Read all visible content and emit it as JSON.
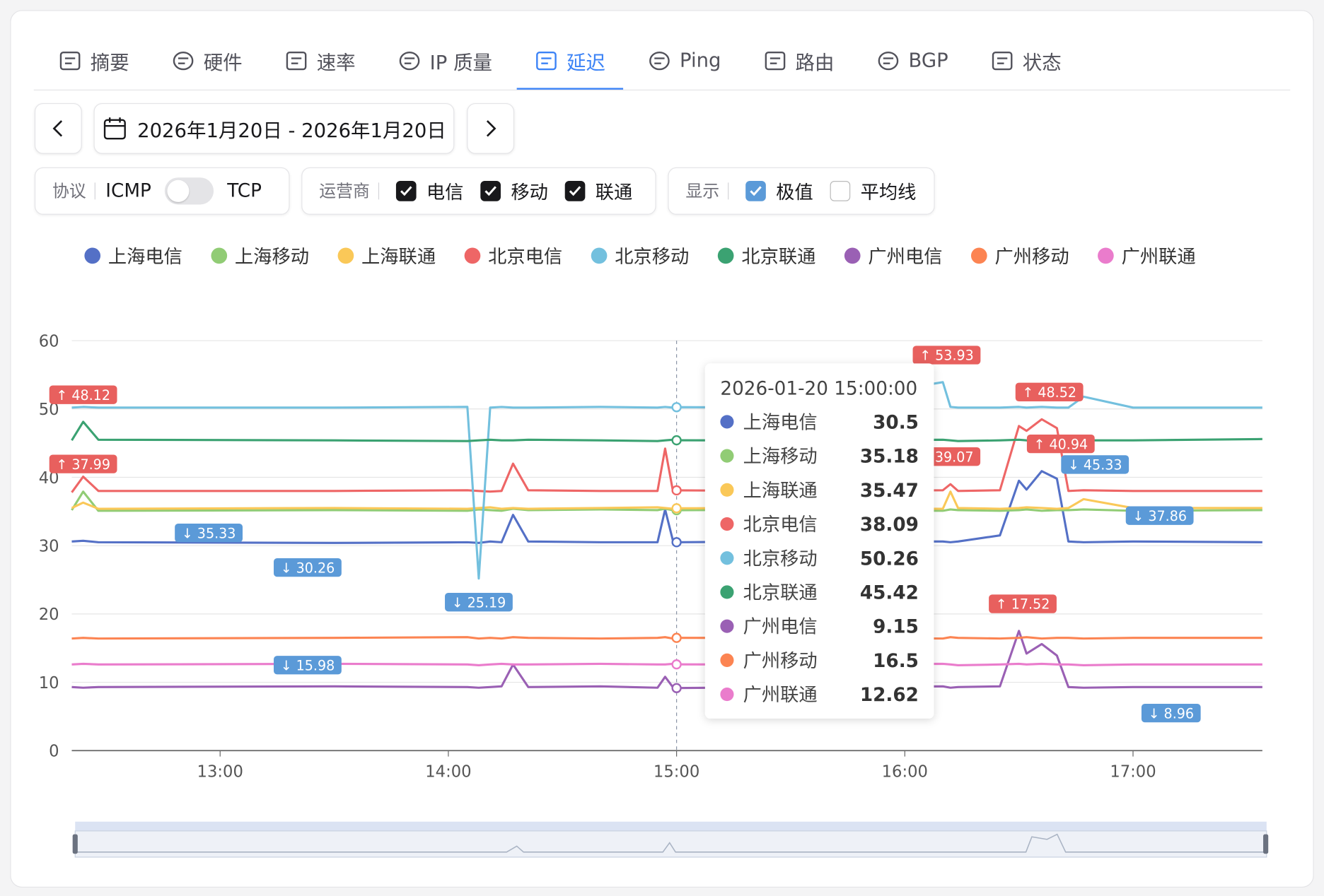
{
  "tabs": {
    "items": [
      "摘要",
      "硬件",
      "速率",
      "IP 质量",
      "延迟",
      "Ping",
      "路由",
      "BGP",
      "状态"
    ],
    "active": "延迟"
  },
  "date_range": "2026年1月20日 - 2026年1月20日",
  "filters": {
    "protocol": {
      "label": "协议",
      "options": [
        "ICMP",
        "TCP"
      ]
    },
    "carrier": {
      "label": "运营商",
      "options": [
        {
          "name": "电信",
          "checked": true
        },
        {
          "name": "移动",
          "checked": true
        },
        {
          "name": "联通",
          "checked": true
        }
      ]
    },
    "display": {
      "label": "显示",
      "options": [
        {
          "name": "极值",
          "checked": true
        },
        {
          "name": "平均线",
          "checked": false
        }
      ]
    }
  },
  "chart_data": {
    "type": "line",
    "x": [
      "12:21",
      "12:24",
      "12:28",
      "13:30",
      "14:05",
      "14:08",
      "14:11",
      "14:14",
      "14:17",
      "14:21",
      "14:40",
      "14:55",
      "14:57",
      "14:59",
      "15:00",
      "15:30",
      "16:10",
      "16:12",
      "16:14",
      "16:25",
      "16:30",
      "16:32",
      "16:36",
      "16:40",
      "16:43",
      "16:47",
      "17:00",
      "17:34"
    ],
    "xlim": [
      "12:21",
      "17:34"
    ],
    "xticks": [
      "13:00",
      "14:00",
      "15:00",
      "16:00",
      "17:00"
    ],
    "ylim": [
      0,
      60
    ],
    "yticks": [
      0,
      10,
      20,
      30,
      40,
      50,
      60
    ],
    "grid": true,
    "series": [
      {
        "name": "上海电信",
        "color": "#5470c6",
        "values": [
          30.6,
          30.7,
          30.5,
          30.4,
          30.5,
          30.4,
          30.6,
          30.5,
          34.5,
          30.6,
          30.5,
          30.5,
          35.3,
          30.8,
          30.5,
          30.6,
          30.6,
          30.5,
          30.6,
          31.5,
          39.5,
          38.2,
          40.9,
          39.8,
          30.6,
          30.5,
          30.6,
          30.5
        ]
      },
      {
        "name": "上海移动",
        "color": "#91cc75",
        "values": [
          35.2,
          37.9,
          35.1,
          35.2,
          35.1,
          35.3,
          35.2,
          35.1,
          35.4,
          35.2,
          35.3,
          35.2,
          35.4,
          35.2,
          35.18,
          35.3,
          35.1,
          35.3,
          35.2,
          35.1,
          35.2,
          35.3,
          35.1,
          35.2,
          35.2,
          35.3,
          35.1,
          35.2
        ]
      },
      {
        "name": "上海联通",
        "color": "#fac858",
        "values": [
          35.5,
          36.3,
          35.4,
          35.5,
          35.4,
          35.5,
          35.6,
          35.4,
          35.5,
          35.4,
          35.5,
          35.6,
          35.5,
          35.4,
          35.47,
          35.5,
          35.4,
          37.9,
          35.5,
          35.4,
          35.5,
          35.6,
          35.5,
          35.4,
          35.5,
          36.8,
          35.5,
          35.5
        ]
      },
      {
        "name": "北京电信",
        "color": "#ee6666",
        "values": [
          37.8,
          40.1,
          38.0,
          38.0,
          38.1,
          38.0,
          37.9,
          38.0,
          42.0,
          38.1,
          38.0,
          38.0,
          44.2,
          38.1,
          38.09,
          38.0,
          38.1,
          39.0,
          38.0,
          38.1,
          47.5,
          46.8,
          48.5,
          47.2,
          38.0,
          38.1,
          38.0,
          38.0
        ]
      },
      {
        "name": "北京移动",
        "color": "#73c0de",
        "values": [
          50.2,
          50.3,
          50.2,
          50.2,
          50.3,
          25.19,
          50.2,
          50.3,
          50.2,
          50.2,
          50.3,
          50.2,
          50.3,
          50.2,
          50.26,
          50.2,
          53.93,
          50.3,
          50.2,
          50.2,
          50.3,
          50.2,
          50.3,
          50.2,
          50.2,
          51.8,
          50.2,
          50.2
        ]
      },
      {
        "name": "北京联通",
        "color": "#3ba272",
        "values": [
          45.4,
          48.12,
          45.5,
          45.4,
          45.3,
          45.4,
          45.5,
          45.4,
          45.4,
          45.5,
          45.4,
          45.3,
          45.4,
          45.5,
          45.42,
          45.4,
          45.5,
          45.4,
          45.3,
          45.4,
          45.5,
          45.4,
          45.3,
          45.4,
          45.5,
          45.4,
          45.4,
          45.6
        ]
      },
      {
        "name": "广州电信",
        "color": "#9a60b4",
        "values": [
          9.3,
          9.2,
          9.3,
          9.4,
          9.3,
          9.2,
          9.3,
          9.4,
          12.6,
          9.3,
          9.4,
          9.2,
          10.8,
          9.3,
          9.15,
          9.3,
          9.4,
          9.2,
          9.3,
          9.4,
          17.52,
          14.2,
          15.6,
          13.9,
          9.3,
          9.2,
          9.3,
          9.3
        ]
      },
      {
        "name": "广州移动",
        "color": "#fc8452",
        "values": [
          16.4,
          16.5,
          16.4,
          16.5,
          16.6,
          16.4,
          16.5,
          16.4,
          16.6,
          16.5,
          16.4,
          16.5,
          16.6,
          16.4,
          16.5,
          16.5,
          16.4,
          16.6,
          16.5,
          16.4,
          16.5,
          16.6,
          16.4,
          16.5,
          16.5,
          16.4,
          16.5,
          16.5
        ]
      },
      {
        "name": "广州联通",
        "color": "#ea7ccc",
        "values": [
          12.6,
          12.7,
          12.6,
          12.7,
          12.6,
          12.5,
          12.6,
          12.7,
          12.6,
          12.6,
          12.7,
          12.6,
          12.6,
          12.7,
          12.62,
          12.6,
          12.7,
          12.6,
          12.5,
          12.6,
          12.7,
          12.6,
          12.7,
          12.6,
          12.6,
          12.5,
          12.6,
          12.6
        ]
      }
    ],
    "annotations": [
      {
        "kind": "max",
        "x": "12:24",
        "value": 48.12,
        "label": "↑ 48.12"
      },
      {
        "kind": "max",
        "x": "12:24",
        "value": 37.99,
        "label": "↑ 37.99"
      },
      {
        "kind": "min",
        "x": "12:57",
        "value": 35.33,
        "label": "↓ 35.33"
      },
      {
        "kind": "min",
        "x": "13:23",
        "value": 30.26,
        "label": "↓ 30.26"
      },
      {
        "kind": "min",
        "x": "14:08",
        "value": 25.19,
        "label": "↓ 25.19"
      },
      {
        "kind": "min",
        "x": "13:23",
        "value": 15.98,
        "label": "↓ 15.98"
      },
      {
        "kind": "max",
        "x": "16:11",
        "value": 53.93,
        "label": "↑ 53.93"
      },
      {
        "kind": "max",
        "x": "16:13",
        "value": 39.07,
        "label": "39.07"
      },
      {
        "kind": "max",
        "x": "16:38",
        "value": 48.52,
        "label": "↑ 48.52"
      },
      {
        "kind": "max",
        "x": "16:41",
        "value": 40.94,
        "label": "↑ 40.94"
      },
      {
        "kind": "min",
        "x": "16:50",
        "value": 45.33,
        "label": "↓ 45.33"
      },
      {
        "kind": "min",
        "x": "17:07",
        "value": 37.86,
        "label": "↓ 37.86"
      },
      {
        "kind": "max",
        "x": "16:31",
        "value": 17.52,
        "label": "↑ 17.52"
      },
      {
        "kind": "min",
        "x": "17:10",
        "value": 8.96,
        "label": "↓ 8.96"
      }
    ],
    "max_color": "#e8605e",
    "min_color": "#5b9ad8",
    "tooltip": {
      "title": "2026-01-20 15:00:00"
    }
  }
}
